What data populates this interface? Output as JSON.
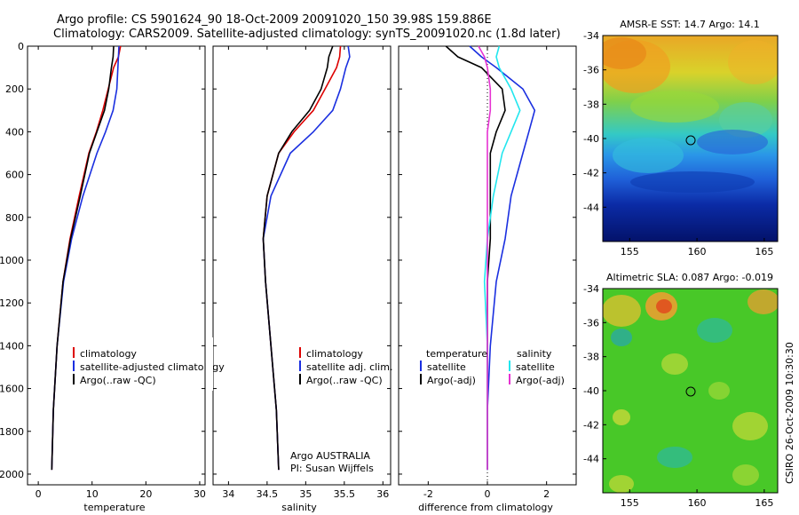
{
  "header": {
    "line1": "Argo profile: CS 5901624_90 18-Oct-2009 20091020_150 39.98S 159.886E",
    "line2": "Climatology: CARS2009. Satellite-adjusted climatology: synTS_20091020.nc (1.8d later)"
  },
  "colors": {
    "climatology": "#dd0000",
    "satellite": "#1a2fe0",
    "argo": "#000000",
    "sal_satellite": "#22e6ee",
    "sal_argo": "#e632d2"
  },
  "credit": "CSIRO 26-Oct-2009 10:30:30",
  "chart_data": [
    {
      "type": "line",
      "xlabel": "temperature",
      "ylabel": "",
      "xlim": [
        -2,
        31
      ],
      "ylim": [
        2050,
        0
      ],
      "xticks": [
        0,
        10,
        20,
        30
      ],
      "yticks": [
        0,
        200,
        400,
        600,
        800,
        1000,
        1200,
        1400,
        1600,
        1800,
        2000
      ],
      "legend": [
        "climatology",
        "satellite-adjusted climatology",
        "Argo(..raw -QC)"
      ],
      "series": [
        {
          "name": "climatology",
          "color": "#dd0000",
          "x": [
            15.3,
            14.9,
            14.0,
            13.0,
            12.0,
            10.8,
            9.4,
            7.6,
            5.9,
            4.6,
            3.5,
            2.8,
            2.5
          ],
          "y": [
            0,
            50,
            100,
            200,
            300,
            400,
            500,
            700,
            900,
            1100,
            1400,
            1700,
            1980
          ]
        },
        {
          "name": "satellite-adjusted climatology",
          "color": "#1a2fe0",
          "x": [
            15.0,
            14.9,
            14.8,
            14.6,
            13.9,
            12.5,
            10.9,
            8.3,
            6.2,
            4.7,
            3.5,
            2.8,
            2.5
          ],
          "y": [
            0,
            50,
            100,
            200,
            300,
            400,
            500,
            700,
            900,
            1100,
            1400,
            1700,
            1980
          ]
        },
        {
          "name": "Argo(..raw -QC)",
          "color": "#000000",
          "x": [
            14.0,
            13.9,
            13.6,
            13.1,
            12.3,
            10.9,
            9.5,
            7.8,
            6.0,
            4.6,
            3.5,
            2.8,
            2.5
          ],
          "y": [
            0,
            50,
            100,
            200,
            300,
            400,
            500,
            700,
            900,
            1100,
            1400,
            1700,
            1980
          ]
        }
      ]
    },
    {
      "type": "line",
      "xlabel": "salinity",
      "xlim": [
        33.8,
        36.1
      ],
      "ylim": [
        2050,
        0
      ],
      "xticks": [
        34,
        34.5,
        35,
        35.5,
        36
      ],
      "legend": [
        "climatology",
        "satellite adj. clim.",
        "Argo(..raw -QC)"
      ],
      "series": [
        {
          "name": "climatology",
          "color": "#dd0000",
          "x": [
            35.45,
            35.44,
            35.4,
            35.25,
            35.1,
            34.85,
            34.65,
            34.5,
            34.45,
            34.48,
            34.55,
            34.62,
            34.65
          ],
          "y": [
            0,
            50,
            100,
            200,
            300,
            400,
            500,
            700,
            900,
            1100,
            1400,
            1700,
            1980
          ]
        },
        {
          "name": "satellite adj. clim.",
          "color": "#1a2fe0",
          "x": [
            35.55,
            35.57,
            35.52,
            35.45,
            35.35,
            35.1,
            34.8,
            34.55,
            34.45,
            34.48,
            34.55,
            34.62,
            34.65
          ],
          "y": [
            0,
            50,
            100,
            200,
            300,
            400,
            500,
            700,
            900,
            1100,
            1400,
            1700,
            1980
          ]
        },
        {
          "name": "Argo(..raw -QC)",
          "color": "#000000",
          "x": [
            35.35,
            35.3,
            35.28,
            35.2,
            35.05,
            34.82,
            34.65,
            34.5,
            34.45,
            34.48,
            34.55,
            34.62,
            34.65
          ],
          "y": [
            0,
            50,
            100,
            200,
            300,
            400,
            500,
            700,
            900,
            1100,
            1400,
            1700,
            1980
          ]
        }
      ],
      "annotations": [
        "Argo AUSTRALIA",
        "PI: Susan Wijffels"
      ]
    },
    {
      "type": "line",
      "xlabel": "difference from climatology",
      "xlim": [
        -3,
        3
      ],
      "ylim": [
        2050,
        0
      ],
      "xticks": [
        -2,
        0,
        2
      ],
      "legend": [
        "temperature",
        "satellite",
        "Argo(-adj)",
        "salinity",
        "satellite",
        "Argo(-adj)"
      ],
      "series": [
        {
          "name": "temperature satellite",
          "color": "#1a2fe0",
          "x": [
            -0.6,
            -0.2,
            0.3,
            1.2,
            1.6,
            1.4,
            1.2,
            0.8,
            0.6,
            0.3,
            0.1,
            0.0,
            0.0
          ],
          "y": [
            0,
            50,
            100,
            200,
            300,
            400,
            500,
            700,
            900,
            1100,
            1400,
            1700,
            1980
          ]
        },
        {
          "name": "temperature Argo(-adj)",
          "color": "#000000",
          "x": [
            -1.4,
            -1.0,
            -0.2,
            0.5,
            0.6,
            0.3,
            0.1,
            0.1,
            0.1,
            0.0,
            0.0,
            0.0,
            0.0
          ],
          "y": [
            0,
            50,
            100,
            200,
            300,
            400,
            500,
            700,
            900,
            1100,
            1400,
            1700,
            1980
          ]
        },
        {
          "name": "salinity satellite",
          "color": "#22e6ee",
          "x": [
            0.4,
            0.3,
            0.4,
            0.8,
            1.1,
            0.8,
            0.5,
            0.2,
            0.0,
            -0.1,
            0.0,
            0.0,
            0.0
          ],
          "y": [
            0,
            50,
            100,
            200,
            300,
            400,
            500,
            700,
            900,
            1100,
            1400,
            1700,
            1980
          ]
        },
        {
          "name": "salinity Argo(-adj)",
          "color": "#e632d2",
          "x": [
            -0.3,
            -0.1,
            0.0,
            0.1,
            0.1,
            0.0,
            0.0,
            0.0,
            0.0,
            0.0,
            0.0,
            0.0,
            0.0
          ],
          "y": [
            0,
            50,
            100,
            200,
            300,
            400,
            500,
            700,
            900,
            1100,
            1400,
            1700,
            1980
          ]
        }
      ]
    },
    {
      "type": "heatmap",
      "title": "AMSR-E SST: 14.7 Argo: 14.1",
      "xlim": [
        153,
        166
      ],
      "ylim": [
        -46,
        -34
      ],
      "xticks": [
        155,
        160,
        165
      ],
      "yticks": [
        -44,
        -42,
        -40,
        -38,
        -36,
        -34
      ],
      "marker": {
        "x": 159.886,
        "y": -39.98
      }
    },
    {
      "type": "heatmap",
      "title": "Altimetric SLA: 0.087 Argo: -0.019",
      "xlim": [
        153,
        166
      ],
      "ylim": [
        -46,
        -34
      ],
      "xticks": [
        155,
        160,
        165
      ],
      "yticks": [
        -44,
        -42,
        -40,
        -38,
        -36,
        -34
      ],
      "marker": {
        "x": 159.886,
        "y": -39.98
      }
    }
  ]
}
